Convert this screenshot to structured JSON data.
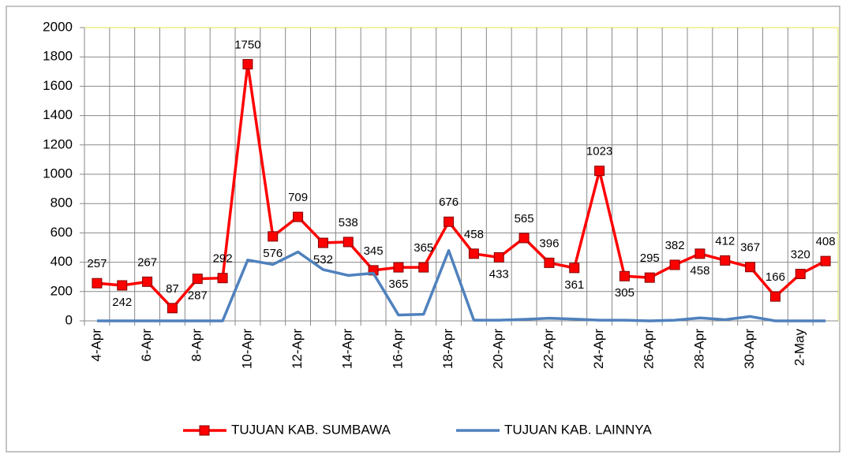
{
  "chart_data": {
    "type": "line",
    "categories": [
      "4-Apr",
      null,
      "6-Apr",
      null,
      "8-Apr",
      null,
      "10-Apr",
      null,
      "12-Apr",
      null,
      "14-Apr",
      null,
      "16-Apr",
      null,
      "18-Apr",
      null,
      "20-Apr",
      null,
      "22-Apr",
      null,
      "24-Apr",
      null,
      "26-Apr",
      null,
      "28-Apr",
      null,
      "30-Apr",
      null,
      "2-May",
      null
    ],
    "series": [
      {
        "name": "TUJUAN KAB. SUMBAWA",
        "color": "#ff0000",
        "marker": "square",
        "values": [
          257,
          242,
          267,
          87,
          287,
          292,
          1750,
          576,
          709,
          532,
          538,
          345,
          365,
          365,
          676,
          458,
          433,
          565,
          396,
          361,
          1023,
          305,
          295,
          382,
          458,
          412,
          367,
          166,
          320,
          408
        ]
      },
      {
        "name": "TUJUAN KAB. LAINNYA",
        "color": "#4f81bd",
        "values": [
          0,
          0,
          0,
          0,
          0,
          0,
          415,
          385,
          470,
          350,
          310,
          325,
          40,
          45,
          480,
          5,
          5,
          10,
          18,
          12,
          5,
          5,
          0,
          5,
          20,
          8,
          30,
          0,
          0,
          0
        ]
      }
    ],
    "ylim": [
      0,
      2000
    ],
    "yticks": [
      0,
      200,
      400,
      600,
      800,
      1000,
      1200,
      1400,
      1600,
      1800,
      2000
    ],
    "grid": true,
    "legend": "bottom",
    "data_labels": [
      0
    ]
  }
}
